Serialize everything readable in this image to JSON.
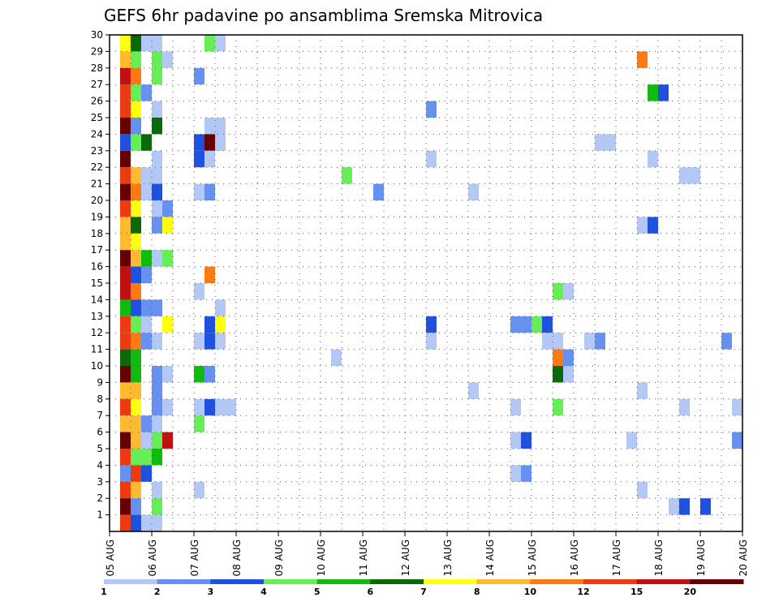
{
  "chart_data": {
    "type": "heatmap",
    "title": "GEFS 6hr padavine po ansamblima Sremska Mitrovica",
    "xlabel": "",
    "ylabel": "",
    "x_ticks": [
      "05 AUG",
      "06 AUG",
      "07 AUG",
      "08 AUG",
      "09 AUG",
      "10 AUG",
      "11 AUG",
      "12 AUG",
      "13 AUG",
      "14 AUG",
      "15 AUG",
      "16 AUG",
      "17 AUG",
      "18 AUG",
      "19 AUG",
      "20 AUG"
    ],
    "y_ticks": [
      1,
      2,
      3,
      4,
      5,
      6,
      7,
      8,
      9,
      10,
      11,
      12,
      13,
      14,
      15,
      16,
      17,
      18,
      19,
      20,
      21,
      22,
      23,
      24,
      25,
      26,
      27,
      28,
      29,
      30
    ],
    "x_unit": "6-hour step from 05 AUG 00Z",
    "xlim": [
      0,
      60
    ],
    "ylim": [
      0,
      30
    ],
    "grid": true,
    "colorbar": {
      "labels": [
        "1",
        "2",
        "3",
        "4",
        "5",
        "6",
        "7",
        "8",
        "10",
        "12",
        "15",
        "20"
      ],
      "colors": [
        "#b4c8f5",
        "#6691f0",
        "#2050e0",
        "#66ee55",
        "#10bb10",
        "#0a6a0a",
        "#ffff10",
        "#ffba30",
        "#ff7a10",
        "#ee3a10",
        "#c01010",
        "#660000"
      ]
    },
    "cells": [
      [
        30,
        2,
        7
      ],
      [
        30,
        3,
        6
      ],
      [
        30,
        4,
        1
      ],
      [
        30,
        5,
        1
      ],
      [
        30,
        10,
        4
      ],
      [
        30,
        11,
        1
      ],
      [
        29,
        2,
        8
      ],
      [
        29,
        3,
        4
      ],
      [
        29,
        5,
        4
      ],
      [
        29,
        6,
        1
      ],
      [
        29,
        51,
        9
      ],
      [
        28,
        2,
        11
      ],
      [
        28,
        3,
        9
      ],
      [
        28,
        5,
        4
      ],
      [
        28,
        9,
        2
      ],
      [
        27,
        2,
        10
      ],
      [
        27,
        3,
        4
      ],
      [
        27,
        4,
        2
      ],
      [
        27,
        52,
        5
      ],
      [
        27,
        53,
        3
      ],
      [
        26,
        2,
        10
      ],
      [
        26,
        3,
        7
      ],
      [
        26,
        5,
        1
      ],
      [
        26,
        31,
        2
      ],
      [
        25,
        2,
        12
      ],
      [
        25,
        3,
        2
      ],
      [
        25,
        5,
        6
      ],
      [
        25,
        10,
        1
      ],
      [
        25,
        11,
        1
      ],
      [
        24,
        2,
        3
      ],
      [
        24,
        3,
        4
      ],
      [
        24,
        4,
        6
      ],
      [
        24,
        9,
        3
      ],
      [
        24,
        10,
        12
      ],
      [
        24,
        11,
        1
      ],
      [
        24,
        47,
        1
      ],
      [
        24,
        48,
        1
      ],
      [
        23,
        2,
        12
      ],
      [
        23,
        5,
        1
      ],
      [
        23,
        9,
        3
      ],
      [
        23,
        10,
        1
      ],
      [
        23,
        31,
        1
      ],
      [
        23,
        52,
        1
      ],
      [
        22,
        2,
        10
      ],
      [
        22,
        3,
        8
      ],
      [
        22,
        4,
        1
      ],
      [
        22,
        5,
        1
      ],
      [
        22,
        23,
        4
      ],
      [
        22,
        55,
        1
      ],
      [
        22,
        56,
        1
      ],
      [
        21,
        2,
        12
      ],
      [
        21,
        3,
        9
      ],
      [
        21,
        4,
        1
      ],
      [
        21,
        5,
        3
      ],
      [
        21,
        9,
        1
      ],
      [
        21,
        10,
        2
      ],
      [
        21,
        26,
        2
      ],
      [
        21,
        35,
        1
      ],
      [
        20,
        2,
        10
      ],
      [
        20,
        3,
        7
      ],
      [
        20,
        5,
        1
      ],
      [
        20,
        6,
        2
      ],
      [
        19,
        2,
        8
      ],
      [
        19,
        3,
        6
      ],
      [
        19,
        5,
        2
      ],
      [
        19,
        6,
        7
      ],
      [
        19,
        51,
        1
      ],
      [
        19,
        52,
        3
      ],
      [
        18,
        2,
        8
      ],
      [
        18,
        3,
        7
      ],
      [
        17,
        2,
        12
      ],
      [
        17,
        3,
        8
      ],
      [
        17,
        4,
        5
      ],
      [
        17,
        5,
        1
      ],
      [
        17,
        6,
        4
      ],
      [
        16,
        2,
        11
      ],
      [
        16,
        3,
        3
      ],
      [
        16,
        4,
        2
      ],
      [
        16,
        10,
        9
      ],
      [
        15,
        2,
        11
      ],
      [
        15,
        3,
        9
      ],
      [
        15,
        9,
        1
      ],
      [
        15,
        43,
        4
      ],
      [
        15,
        44,
        1
      ],
      [
        14,
        2,
        5
      ],
      [
        14,
        3,
        3
      ],
      [
        14,
        4,
        2
      ],
      [
        14,
        5,
        2
      ],
      [
        14,
        11,
        1
      ],
      [
        13,
        2,
        10
      ],
      [
        13,
        3,
        4
      ],
      [
        13,
        4,
        1
      ],
      [
        13,
        6,
        7
      ],
      [
        13,
        10,
        3
      ],
      [
        13,
        11,
        7
      ],
      [
        13,
        31,
        3
      ],
      [
        13,
        39,
        2
      ],
      [
        13,
        40,
        2
      ],
      [
        13,
        41,
        4
      ],
      [
        13,
        42,
        3
      ],
      [
        12,
        2,
        10
      ],
      [
        12,
        3,
        9
      ],
      [
        12,
        4,
        2
      ],
      [
        12,
        5,
        1
      ],
      [
        12,
        9,
        1
      ],
      [
        12,
        10,
        3
      ],
      [
        12,
        11,
        1
      ],
      [
        12,
        31,
        1
      ],
      [
        12,
        42,
        1
      ],
      [
        12,
        43,
        1
      ],
      [
        12,
        46,
        1
      ],
      [
        12,
        47,
        2
      ],
      [
        12,
        59,
        2
      ],
      [
        11,
        2,
        6
      ],
      [
        11,
        3,
        5
      ],
      [
        11,
        22,
        1
      ],
      [
        11,
        43,
        9
      ],
      [
        11,
        44,
        2
      ],
      [
        10,
        2,
        12
      ],
      [
        10,
        3,
        5
      ],
      [
        10,
        5,
        2
      ],
      [
        10,
        6,
        1
      ],
      [
        10,
        9,
        5
      ],
      [
        10,
        10,
        2
      ],
      [
        10,
        43,
        6
      ],
      [
        10,
        44,
        1
      ],
      [
        9,
        2,
        8
      ],
      [
        9,
        3,
        8
      ],
      [
        9,
        5,
        2
      ],
      [
        9,
        35,
        1
      ],
      [
        9,
        51,
        1
      ],
      [
        8,
        2,
        10
      ],
      [
        8,
        3,
        7
      ],
      [
        8,
        5,
        2
      ],
      [
        8,
        6,
        1
      ],
      [
        8,
        9,
        1
      ],
      [
        8,
        10,
        3
      ],
      [
        8,
        11,
        1
      ],
      [
        8,
        12,
        1
      ],
      [
        8,
        39,
        1
      ],
      [
        8,
        43,
        4
      ],
      [
        8,
        55,
        1
      ],
      [
        8,
        60,
        1
      ],
      [
        7,
        2,
        8
      ],
      [
        7,
        3,
        8
      ],
      [
        7,
        4,
        2
      ],
      [
        7,
        5,
        1
      ],
      [
        7,
        9,
        4
      ],
      [
        6,
        2,
        12
      ],
      [
        6,
        3,
        8
      ],
      [
        6,
        4,
        1
      ],
      [
        6,
        5,
        4
      ],
      [
        6,
        6,
        11
      ],
      [
        6,
        39,
        1
      ],
      [
        6,
        40,
        3
      ],
      [
        6,
        50,
        1
      ],
      [
        6,
        60,
        2
      ],
      [
        5,
        2,
        10
      ],
      [
        5,
        3,
        4
      ],
      [
        5,
        4,
        4
      ],
      [
        5,
        5,
        5
      ],
      [
        4,
        2,
        2
      ],
      [
        4,
        3,
        10
      ],
      [
        4,
        4,
        3
      ],
      [
        4,
        39,
        1
      ],
      [
        4,
        40,
        2
      ],
      [
        3,
        2,
        10
      ],
      [
        3,
        3,
        8
      ],
      [
        3,
        5,
        1
      ],
      [
        3,
        9,
        1
      ],
      [
        3,
        51,
        1
      ],
      [
        2,
        2,
        12
      ],
      [
        2,
        3,
        2
      ],
      [
        2,
        5,
        4
      ],
      [
        2,
        54,
        1
      ],
      [
        2,
        55,
        3
      ],
      [
        2,
        57,
        3
      ],
      [
        1,
        2,
        10
      ],
      [
        1,
        3,
        3
      ],
      [
        1,
        4,
        1
      ],
      [
        1,
        5,
        1
      ]
    ]
  }
}
